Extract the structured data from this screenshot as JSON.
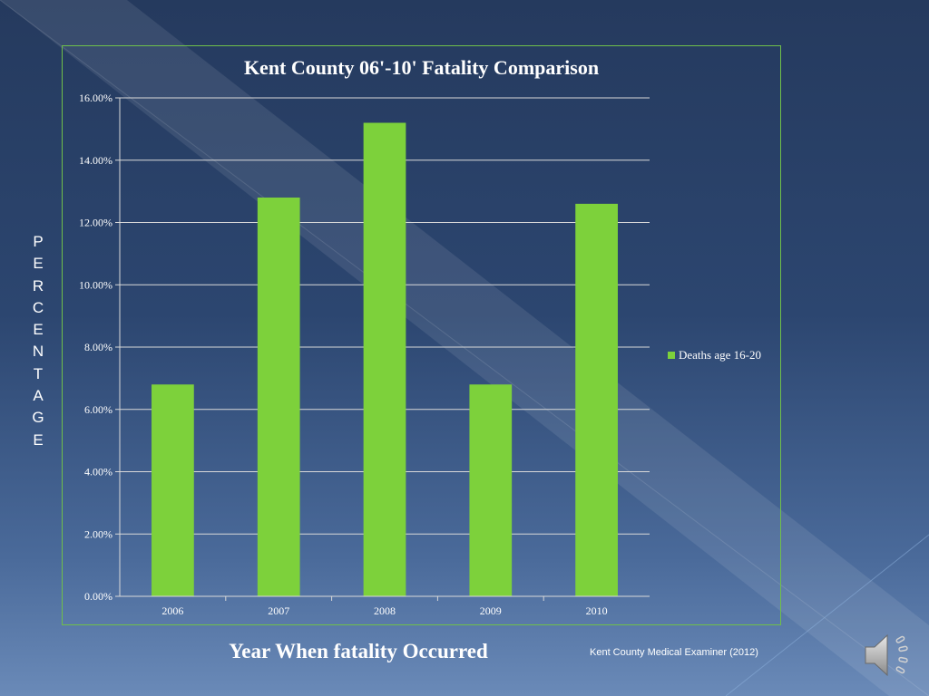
{
  "slide": {
    "vertical_label": "PERCENTAGE",
    "x_axis_title": "Year When fatality Occurred",
    "source": "Kent County Medical Examiner (2012)",
    "speaker_icon": "speaker-icon"
  },
  "chart_data": {
    "type": "bar",
    "title": "Kent County 06'-10' Fatality Comparison",
    "categories": [
      "2006",
      "2007",
      "2008",
      "2009",
      "2010"
    ],
    "series": [
      {
        "name": "Deaths age 16-20",
        "values": [
          6.8,
          12.8,
          15.2,
          6.8,
          12.6
        ],
        "color": "#7dd13b"
      }
    ],
    "ylim": [
      0,
      16
    ],
    "yticks": [
      "0.00%",
      "2.00%",
      "4.00%",
      "6.00%",
      "8.00%",
      "10.00%",
      "12.00%",
      "14.00%",
      "16.00%"
    ],
    "grid": true,
    "legend": "right",
    "colors": {
      "grid": "#d9d9d9",
      "axis": "#d9d9d9",
      "frame": "#6fbf4a",
      "text": "#ffffff"
    }
  }
}
